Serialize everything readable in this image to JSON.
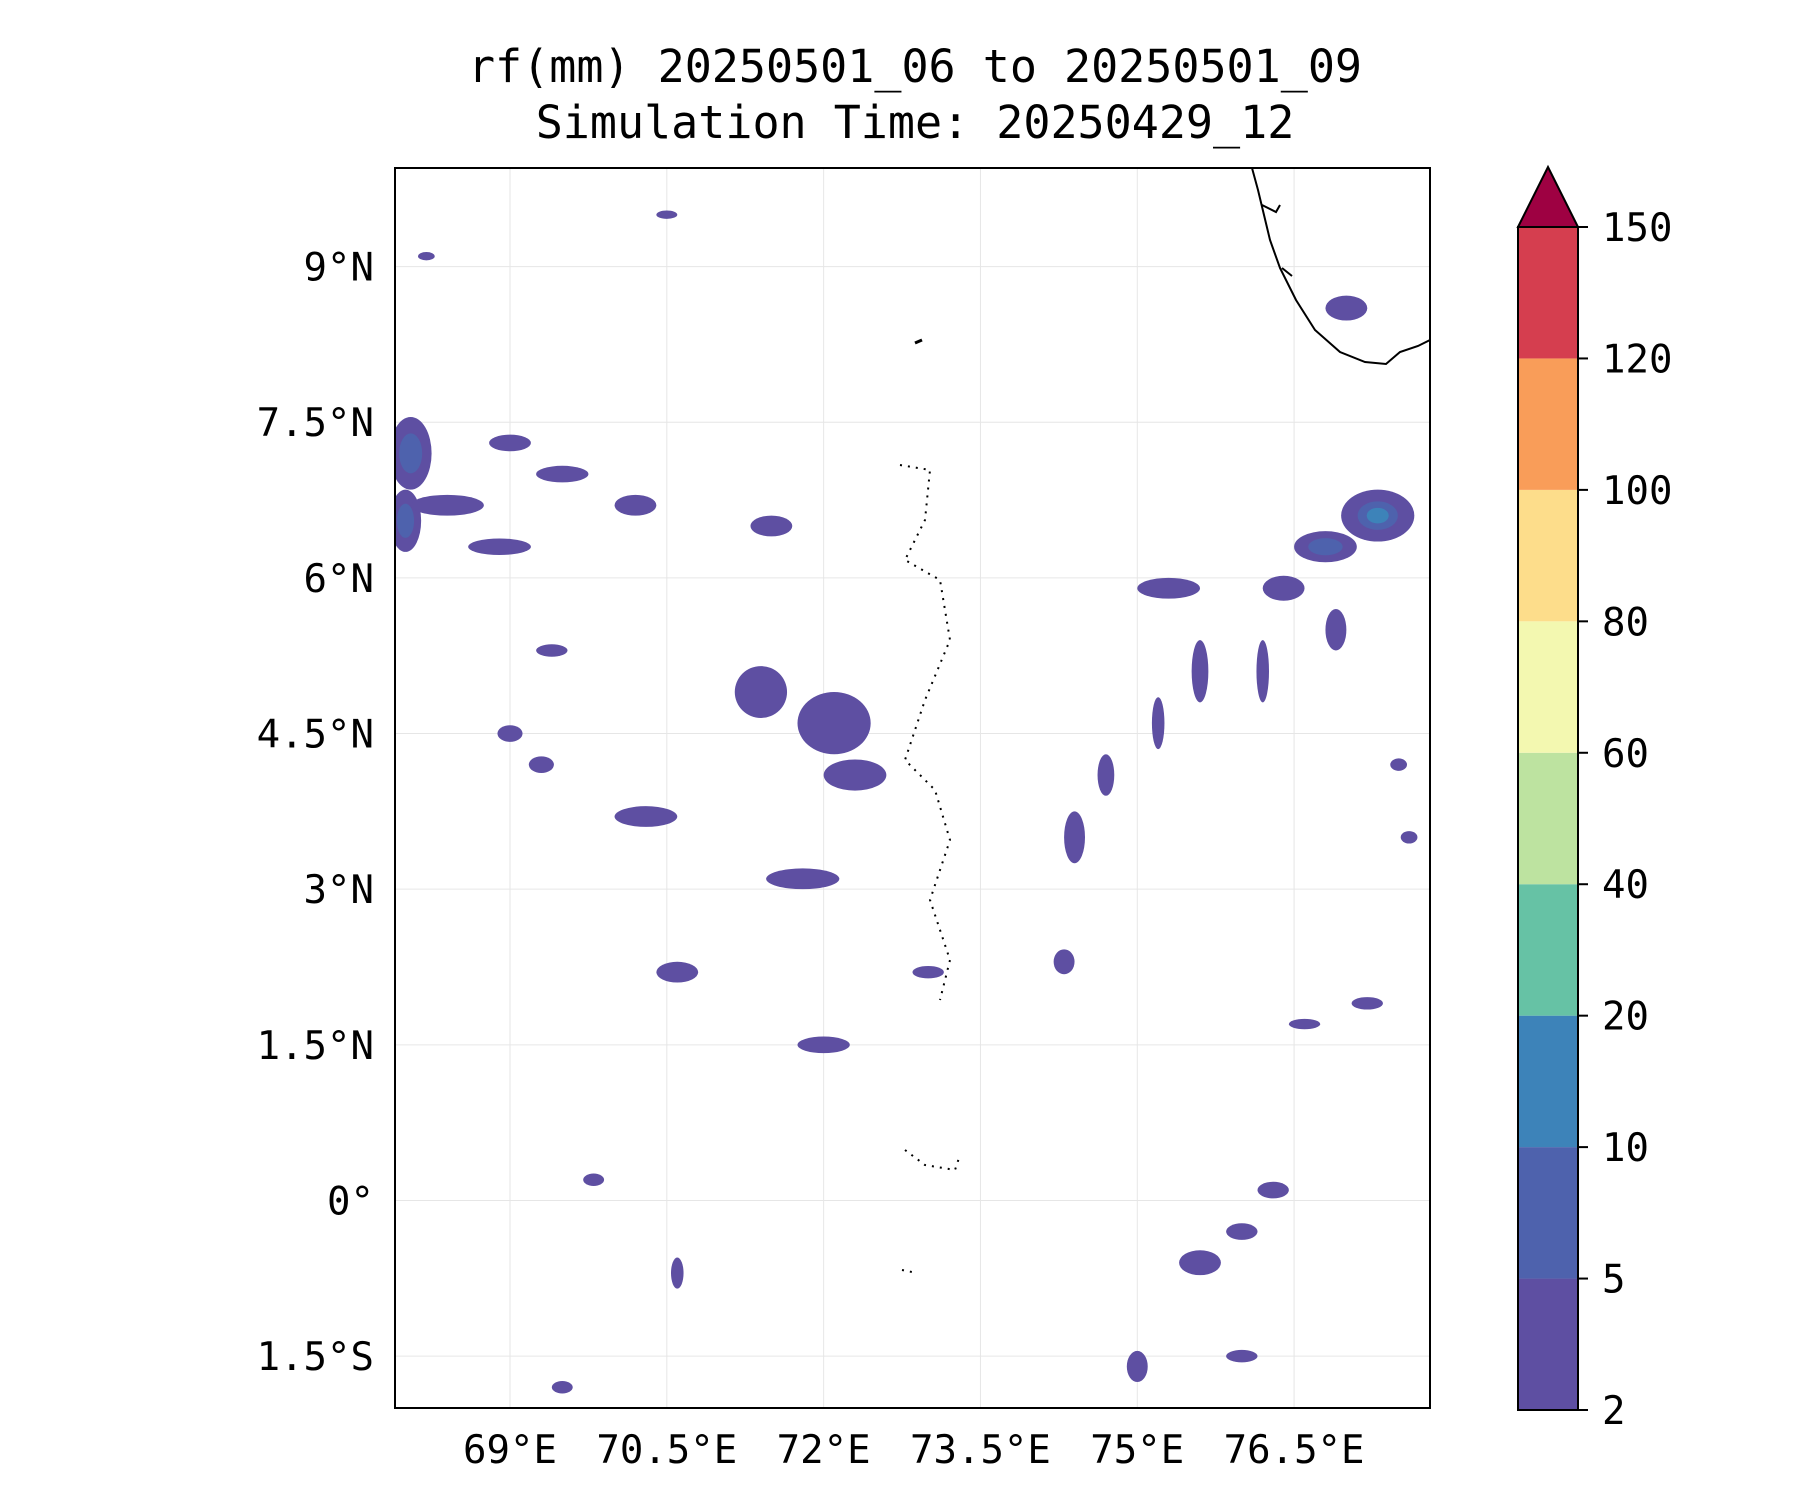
{
  "title_line1": "rf(mm) 20250501_06 to 20250501_09",
  "title_line2": "Simulation Time: 20250429_12",
  "map": {
    "extent": {
      "lon_min": 67.9,
      "lon_max": 77.8,
      "lat_min": -2.0,
      "lat_max": 9.95
    },
    "lon_ticks": [
      {
        "value": 69,
        "label": "69°E"
      },
      {
        "value": 70.5,
        "label": "70.5°E"
      },
      {
        "value": 72,
        "label": "72°E"
      },
      {
        "value": 73.5,
        "label": "73.5°E"
      },
      {
        "value": 75,
        "label": "75°E"
      },
      {
        "value": 76.5,
        "label": "76.5°E"
      }
    ],
    "lat_ticks": [
      {
        "value": 9,
        "label": "9°N"
      },
      {
        "value": 7.5,
        "label": "7.5°N"
      },
      {
        "value": 6,
        "label": "6°N"
      },
      {
        "value": 4.5,
        "label": "4.5°N"
      },
      {
        "value": 3,
        "label": "3°N"
      },
      {
        "value": 1.5,
        "label": "1.5°N"
      },
      {
        "value": 0,
        "label": "0°"
      },
      {
        "value": -1.5,
        "label": "1.5°S"
      }
    ],
    "gridlines": true
  },
  "colorbar": {
    "levels": [
      "2",
      "5",
      "10",
      "20",
      "40",
      "60",
      "80",
      "100",
      "120",
      "150"
    ],
    "colors": [
      "#5e4fa2",
      "#4e62ad",
      "#3d83b9",
      "#66c2a5",
      "#bde3a0",
      "#f3f8b0",
      "#fddd8b",
      "#f99d59",
      "#d53e4f"
    ],
    "extend_color": "#9e0142"
  },
  "rain_cells": [
    {
      "lon": 68.05,
      "lat": 7.2,
      "rlon": 0.2,
      "rlat": 0.35,
      "level": 1
    },
    {
      "lon": 68.0,
      "lat": 6.55,
      "rlon": 0.15,
      "rlat": 0.3,
      "level": 1
    },
    {
      "lon": 68.4,
      "lat": 6.7,
      "rlon": 0.35,
      "rlat": 0.1,
      "level": 0
    },
    {
      "lon": 68.9,
      "lat": 6.3,
      "rlon": 0.3,
      "rlat": 0.08,
      "level": 0
    },
    {
      "lon": 69.5,
      "lat": 7.0,
      "rlon": 0.25,
      "rlat": 0.08,
      "level": 0
    },
    {
      "lon": 69.0,
      "lat": 7.3,
      "rlon": 0.2,
      "rlat": 0.08,
      "level": 0
    },
    {
      "lon": 70.2,
      "lat": 6.7,
      "rlon": 0.2,
      "rlat": 0.1,
      "level": 0
    },
    {
      "lon": 71.5,
      "lat": 6.5,
      "rlon": 0.2,
      "rlat": 0.1,
      "level": 0
    },
    {
      "lon": 72.1,
      "lat": 4.6,
      "rlon": 0.35,
      "rlat": 0.3,
      "level": 0
    },
    {
      "lon": 71.4,
      "lat": 4.9,
      "rlon": 0.25,
      "rlat": 0.25,
      "level": 0
    },
    {
      "lon": 72.3,
      "lat": 4.1,
      "rlon": 0.3,
      "rlat": 0.15,
      "level": 0
    },
    {
      "lon": 70.3,
      "lat": 3.7,
      "rlon": 0.3,
      "rlat": 0.1,
      "level": 0
    },
    {
      "lon": 71.8,
      "lat": 3.1,
      "rlon": 0.35,
      "rlat": 0.1,
      "level": 0
    },
    {
      "lon": 70.6,
      "lat": 2.2,
      "rlon": 0.2,
      "rlat": 0.1,
      "level": 0
    },
    {
      "lon": 72.0,
      "lat": 1.5,
      "rlon": 0.25,
      "rlat": 0.08,
      "level": 0
    },
    {
      "lon": 70.6,
      "lat": -0.7,
      "rlon": 0.06,
      "rlat": 0.15,
      "level": 0
    },
    {
      "lon": 77.3,
      "lat": 6.6,
      "rlon": 0.35,
      "rlat": 0.25,
      "level": 2
    },
    {
      "lon": 76.8,
      "lat": 6.3,
      "rlon": 0.3,
      "rlat": 0.15,
      "level": 1
    },
    {
      "lon": 76.4,
      "lat": 5.9,
      "rlon": 0.2,
      "rlat": 0.12,
      "level": 0
    },
    {
      "lon": 75.3,
      "lat": 5.9,
      "rlon": 0.3,
      "rlat": 0.1,
      "level": 0
    },
    {
      "lon": 75.6,
      "lat": 5.1,
      "rlon": 0.08,
      "rlat": 0.3,
      "level": 0
    },
    {
      "lon": 75.2,
      "lat": 4.6,
      "rlon": 0.06,
      "rlat": 0.25,
      "level": 0
    },
    {
      "lon": 74.7,
      "lat": 4.1,
      "rlon": 0.08,
      "rlat": 0.2,
      "level": 0
    },
    {
      "lon": 74.4,
      "lat": 3.5,
      "rlon": 0.1,
      "rlat": 0.25,
      "level": 0
    },
    {
      "lon": 76.2,
      "lat": 5.1,
      "rlon": 0.06,
      "rlat": 0.3,
      "level": 0
    },
    {
      "lon": 76.9,
      "lat": 5.5,
      "rlon": 0.1,
      "rlat": 0.2,
      "level": 0
    },
    {
      "lon": 77.0,
      "lat": 8.6,
      "rlon": 0.2,
      "rlat": 0.12,
      "level": 0
    },
    {
      "lon": 75.6,
      "lat": -0.6,
      "rlon": 0.2,
      "rlat": 0.12,
      "level": 0
    },
    {
      "lon": 76.0,
      "lat": -0.3,
      "rlon": 0.15,
      "rlat": 0.08,
      "level": 0
    },
    {
      "lon": 76.3,
      "lat": 0.1,
      "rlon": 0.15,
      "rlat": 0.08,
      "level": 0
    },
    {
      "lon": 75.0,
      "lat": -1.6,
      "rlon": 0.1,
      "rlat": 0.15,
      "level": 0
    },
    {
      "lon": 76.0,
      "lat": -1.5,
      "rlon": 0.15,
      "rlat": 0.06,
      "level": 0
    },
    {
      "lon": 76.6,
      "lat": 1.7,
      "rlon": 0.15,
      "rlat": 0.05,
      "level": 0
    },
    {
      "lon": 77.2,
      "lat": 1.9,
      "rlon": 0.15,
      "rlat": 0.06,
      "level": 0
    },
    {
      "lon": 74.3,
      "lat": 2.3,
      "rlon": 0.1,
      "rlat": 0.12,
      "level": 0
    },
    {
      "lon": 73.0,
      "lat": 2.2,
      "rlon": 0.15,
      "rlat": 0.06,
      "level": 0
    },
    {
      "lon": 69.4,
      "lat": 5.3,
      "rlon": 0.15,
      "rlat": 0.06,
      "level": 0
    },
    {
      "lon": 69.0,
      "lat": 4.5,
      "rlon": 0.12,
      "rlat": 0.08,
      "level": 0
    },
    {
      "lon": 69.3,
      "lat": 4.2,
      "rlon": 0.12,
      "rlat": 0.08,
      "level": 0
    },
    {
      "lon": 69.8,
      "lat": 0.2,
      "rlon": 0.1,
      "rlat": 0.06,
      "level": 0
    },
    {
      "lon": 69.5,
      "lat": -1.8,
      "rlon": 0.1,
      "rlat": 0.06,
      "level": 0
    },
    {
      "lon": 68.2,
      "lat": 9.1,
      "rlon": 0.08,
      "rlat": 0.04,
      "level": 0
    },
    {
      "lon": 70.5,
      "lat": 9.5,
      "rlon": 0.1,
      "rlat": 0.04,
      "level": 0
    },
    {
      "lon": 77.6,
      "lat": 3.5,
      "rlon": 0.08,
      "rlat": 0.06,
      "level": 0
    },
    {
      "lon": 77.5,
      "lat": 4.2,
      "rlon": 0.08,
      "rlat": 0.06,
      "level": 0
    }
  ]
}
